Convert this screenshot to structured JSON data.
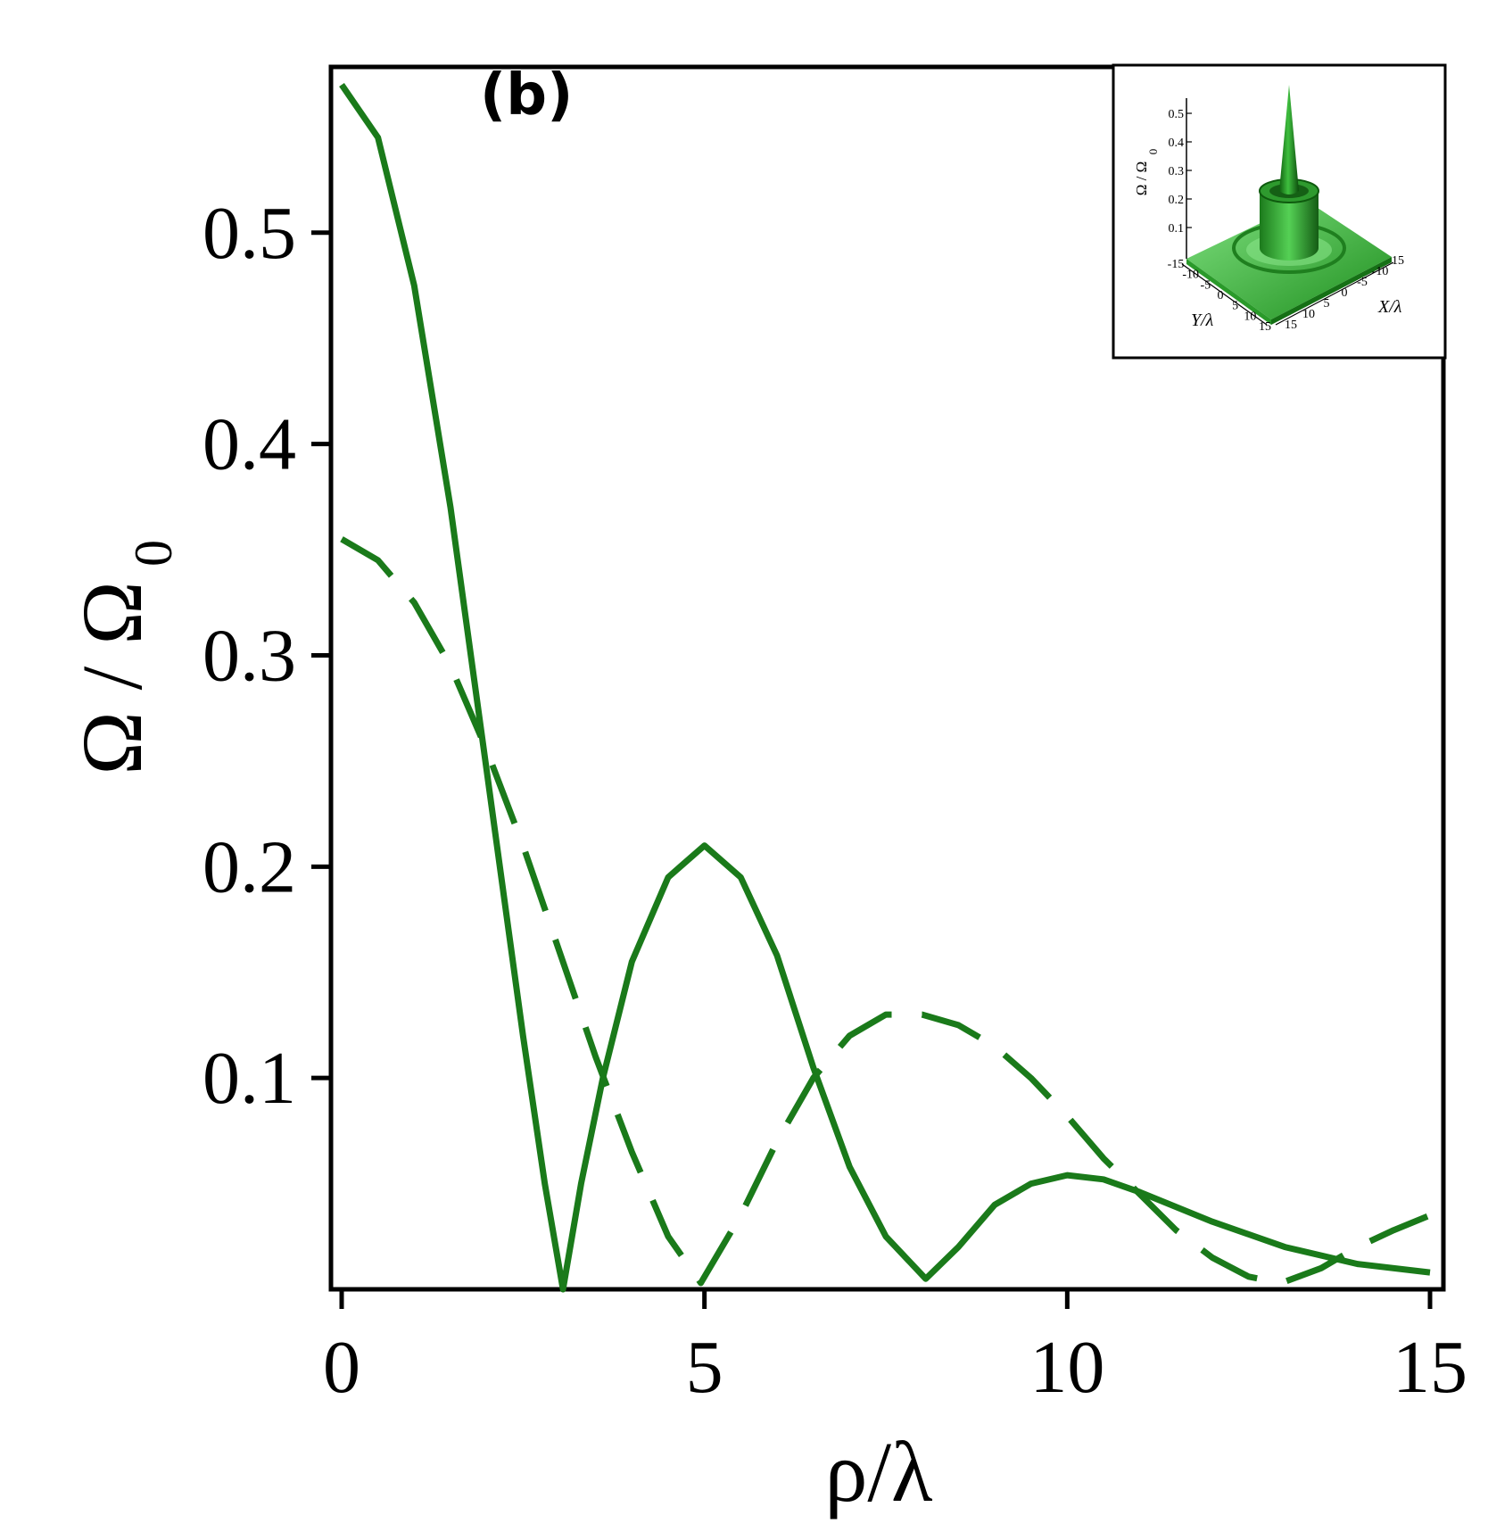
{
  "chart_data": {
    "type": "line",
    "panel_label": "(b)",
    "xlabel": "ρ/λ",
    "ylabel": "Ω / Ω",
    "ylabel_subscript": "0",
    "xlim": [
      0,
      15
    ],
    "ylim": [
      0,
      0.57
    ],
    "x_ticks": [
      0,
      5,
      10,
      15
    ],
    "x_tick_labels": [
      "0",
      "5",
      "10",
      "15"
    ],
    "y_ticks": [
      0.1,
      0.2,
      0.3,
      0.4,
      0.5
    ],
    "y_tick_labels": [
      "0.1",
      "0.2",
      "0.3",
      "0.4",
      "0.5"
    ],
    "grid": false,
    "line_color": "#1a7a1a",
    "series": [
      {
        "style": "solid",
        "x": [
          0,
          0.5,
          1,
          1.5,
          2,
          2.5,
          2.8,
          3.05,
          3.3,
          3.6,
          4,
          4.5,
          5,
          5.5,
          6,
          6.5,
          7,
          7.5,
          8.05,
          8.5,
          9,
          9.5,
          10,
          10.5,
          11,
          12,
          13,
          14,
          15
        ],
        "y": [
          0.57,
          0.545,
          0.475,
          0.37,
          0.245,
          0.12,
          0.05,
          0.0,
          0.05,
          0.1,
          0.155,
          0.195,
          0.21,
          0.195,
          0.158,
          0.105,
          0.058,
          0.025,
          0.005,
          0.02,
          0.04,
          0.05,
          0.054,
          0.052,
          0.046,
          0.032,
          0.02,
          0.012,
          0.008
        ]
      },
      {
        "style": "dashed",
        "x": [
          0,
          0.5,
          1,
          1.5,
          2,
          2.5,
          3,
          3.5,
          4,
          4.5,
          4.95,
          5.5,
          6,
          6.5,
          7,
          7.5,
          8,
          8.5,
          9,
          9.5,
          10,
          10.5,
          11,
          11.5,
          12,
          12.5,
          12.95,
          13.5,
          14,
          14.5,
          15
        ],
        "y": [
          0.355,
          0.345,
          0.325,
          0.295,
          0.255,
          0.21,
          0.16,
          0.11,
          0.065,
          0.025,
          0.003,
          0.035,
          0.07,
          0.1,
          0.12,
          0.13,
          0.13,
          0.125,
          0.115,
          0.1,
          0.082,
          0.062,
          0.045,
          0.028,
          0.015,
          0.006,
          0.003,
          0.01,
          0.02,
          0.028,
          0.035
        ]
      }
    ],
    "inset": {
      "type": "surface3d",
      "zlabel": "Ω / Ω",
      "zlabel_subscript": "0",
      "xlabel": "X/λ",
      "ylabel": "Y/λ",
      "z_ticks": [
        "0.1",
        "0.2",
        "0.3",
        "0.4",
        "0.5"
      ],
      "y_axis_ticks": [
        "-15",
        "-10",
        "-5",
        "0",
        "5",
        "10",
        "15"
      ],
      "x_axis_ticks": [
        "15",
        "10",
        "5",
        "0",
        "-5",
        "-10",
        "15"
      ],
      "surface_color": "#3cb83c"
    }
  }
}
